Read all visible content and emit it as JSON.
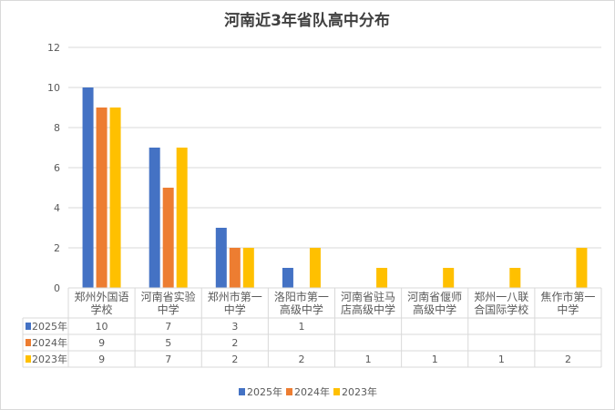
{
  "chart_data": {
    "type": "bar",
    "title": "河南近3年省队高中分布",
    "categories": [
      [
        "郑州外国语",
        "学校"
      ],
      [
        "河南省实验",
        "中学"
      ],
      [
        "郑州市第一",
        "中学"
      ],
      [
        "洛阳市第一",
        "高级中学"
      ],
      [
        "河南省驻马",
        "店高级中学"
      ],
      [
        "河南省偃师",
        "高级中学"
      ],
      [
        "郑州一八联",
        "合国际学校"
      ],
      [
        "焦作市第一",
        "中学"
      ]
    ],
    "series": [
      {
        "name": "2025年",
        "color": "#4472C4",
        "values": [
          10,
          7,
          3,
          1,
          null,
          null,
          null,
          null
        ]
      },
      {
        "name": "2024年",
        "color": "#ED7D31",
        "values": [
          9,
          5,
          2,
          null,
          null,
          null,
          null,
          null
        ]
      },
      {
        "name": "2023年",
        "color": "#FFC000",
        "values": [
          9,
          7,
          2,
          2,
          1,
          1,
          1,
          2
        ]
      }
    ],
    "ylim": [
      0,
      12
    ],
    "yticks": [
      0,
      2,
      4,
      6,
      8,
      10,
      12
    ],
    "grid": true,
    "legend": "bottom",
    "data_table": true
  }
}
